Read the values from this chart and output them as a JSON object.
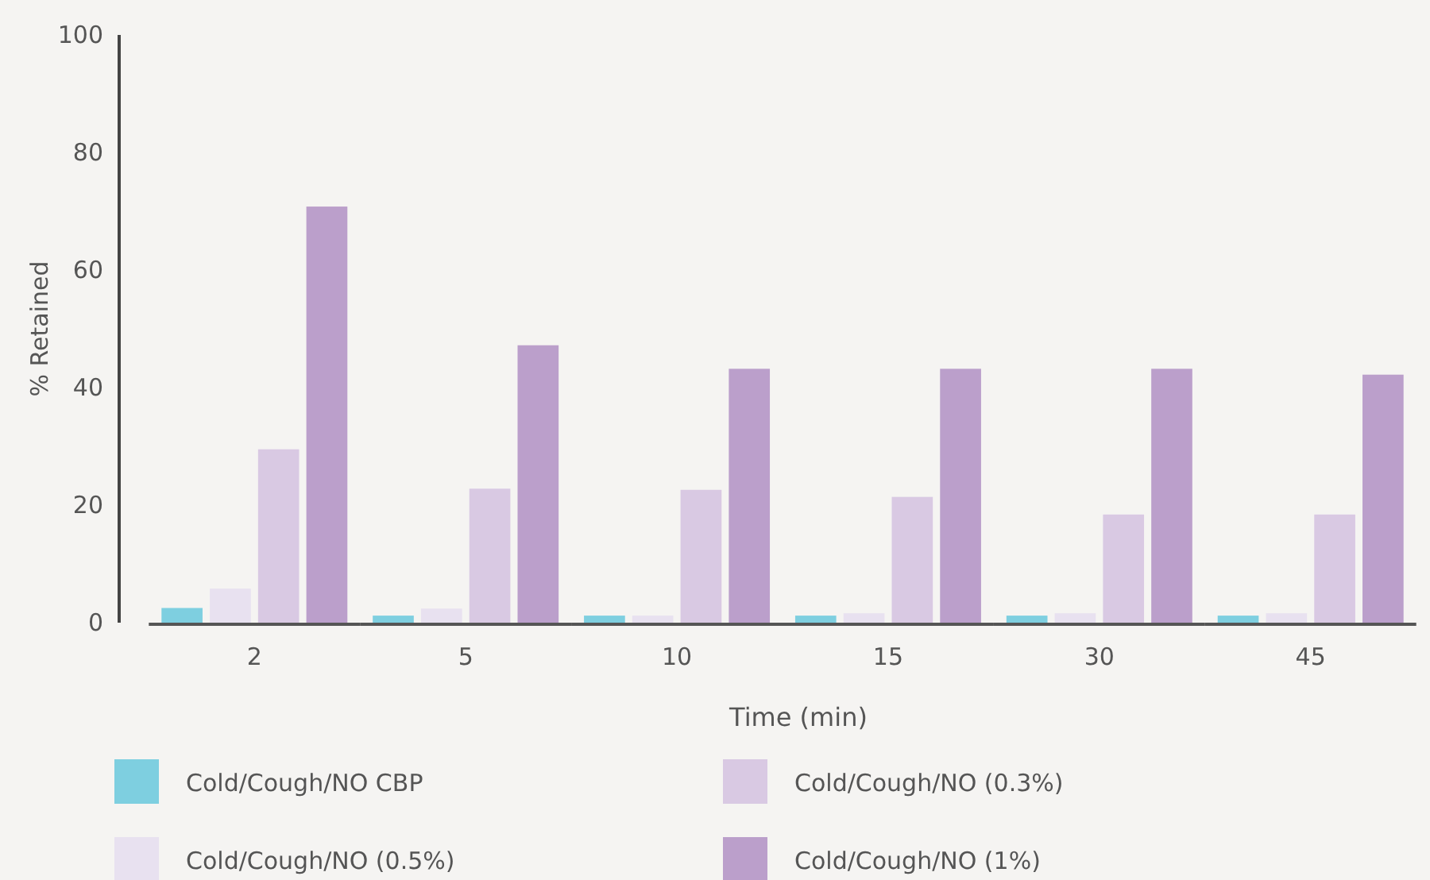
{
  "chart_data": {
    "type": "bar",
    "xlabel": "Time (min)",
    "ylabel": "% Retained",
    "categories": [
      "2",
      "5",
      "10",
      "15",
      "30",
      "45"
    ],
    "series": [
      {
        "name": "Cold/Cough/NO CBP",
        "color": "#7ecfe0",
        "values": [
          2.5,
          1.2,
          1.2,
          1.2,
          1.2,
          1.2
        ]
      },
      {
        "name": "Cold/Cough/NO (0.5%)",
        "color": "#e8e1f0",
        "values": [
          5.8,
          2.4,
          1.2,
          1.6,
          1.6,
          1.6
        ]
      },
      {
        "name": "Cold/Cough/NO (0.3%)",
        "color": "#d9c9e3",
        "values": [
          29.5,
          22.8,
          22.6,
          21.4,
          18.4,
          18.4
        ]
      },
      {
        "name": "Cold/Cough/NO (1%)",
        "color": "#bb9fcb",
        "values": [
          70.8,
          47.2,
          43.2,
          43.2,
          43.2,
          42.2
        ]
      }
    ],
    "ylim": [
      0,
      100
    ],
    "yticks": [
      0,
      20,
      40,
      60,
      80,
      100
    ],
    "grid": false,
    "legend": "bottom"
  }
}
